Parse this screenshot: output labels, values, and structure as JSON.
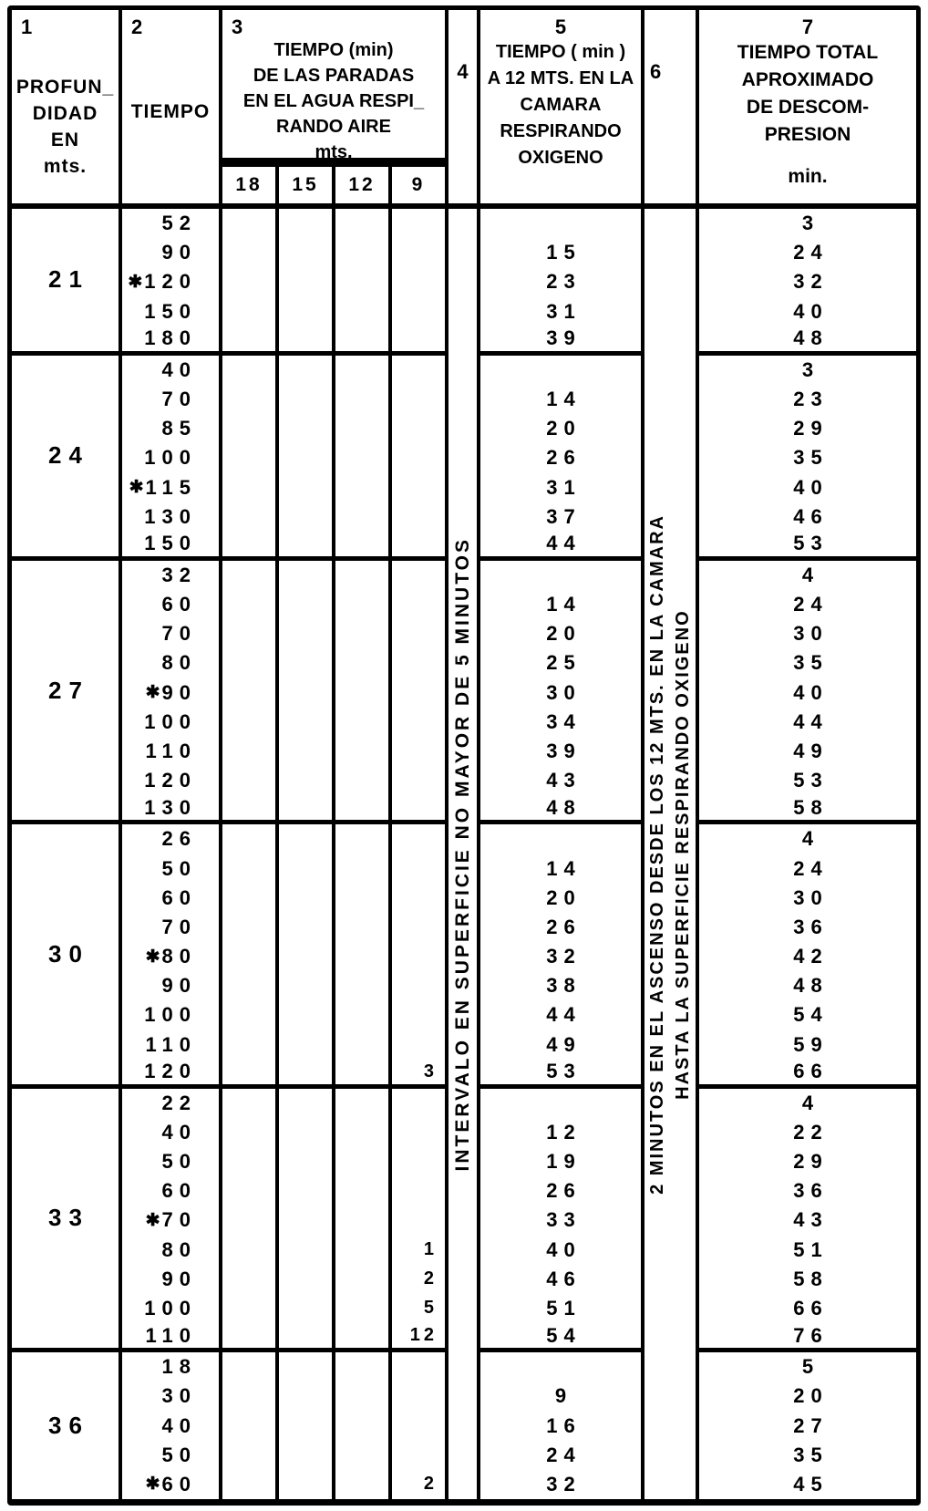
{
  "table": {
    "header": {
      "col1": {
        "num": "1",
        "lines": [
          "PROFUN_",
          "DIDAD",
          "EN",
          "mts."
        ]
      },
      "col2": {
        "num": "2",
        "label": "TIEMPO"
      },
      "col3": {
        "num": "3",
        "lines": [
          "TIEMPO (min)",
          "DE LAS PARADAS",
          "EN EL AGUA RESPI_",
          "RANDO AIRE",
          "mts."
        ],
        "sub": [
          "18",
          "15",
          "12",
          "9"
        ]
      },
      "col4": {
        "num": "4"
      },
      "col5": {
        "num": "5",
        "lines": [
          "TIEMPO ( min )",
          "A 12 MTS. EN LA",
          "CAMARA",
          "RESPIRANDO",
          "OXIGENO"
        ]
      },
      "col6": {
        "num": "6"
      },
      "col7": {
        "num": "7",
        "lines": [
          "TIEMPO TOTAL",
          "APROXIMADO",
          "DE DESCOM-",
          "PRESION",
          "min."
        ]
      }
    },
    "col4_vertical": "INTERVALO EN SUPERFICIE NO MAYOR DE 5 MINUTOS",
    "col6_vertical": [
      "2 MINUTOS EN EL ASCENSO DESDE LOS 12 MTS. EN LA CAMARA",
      "HASTA LA SUPERFICIE RESPIRANDO OXIGENO"
    ],
    "star_glyph": "✱",
    "ink_color": "#000000",
    "paper_color": "#ffffff",
    "groups": [
      {
        "depth": "21",
        "rows": [
          {
            "t": "52",
            "tot": "3"
          },
          {
            "t": "90",
            "o2": "15",
            "tot": "24"
          },
          {
            "t": "120",
            "star": true,
            "o2": "23",
            "tot": "32"
          },
          {
            "t": "150",
            "o2": "31",
            "tot": "40"
          },
          {
            "t": "180",
            "o2": "39",
            "tot": "48"
          }
        ]
      },
      {
        "depth": "24",
        "rows": [
          {
            "t": "40",
            "tot": "3"
          },
          {
            "t": "70",
            "o2": "14",
            "tot": "23"
          },
          {
            "t": "85",
            "o2": "20",
            "tot": "29"
          },
          {
            "t": "100",
            "o2": "26",
            "tot": "35"
          },
          {
            "t": "115",
            "star": true,
            "o2": "31",
            "tot": "40"
          },
          {
            "t": "130",
            "o2": "37",
            "tot": "46"
          },
          {
            "t": "150",
            "o2": "44",
            "tot": "53"
          }
        ]
      },
      {
        "depth": "27",
        "rows": [
          {
            "t": "32",
            "tot": "4"
          },
          {
            "t": "60",
            "o2": "14",
            "tot": "24"
          },
          {
            "t": "70",
            "o2": "20",
            "tot": "30"
          },
          {
            "t": "80",
            "o2": "25",
            "tot": "35"
          },
          {
            "t": "90",
            "star": true,
            "o2": "30",
            "tot": "40"
          },
          {
            "t": "100",
            "o2": "34",
            "tot": "44"
          },
          {
            "t": "110",
            "o2": "39",
            "tot": "49"
          },
          {
            "t": "120",
            "o2": "43",
            "tot": "53"
          },
          {
            "t": "130",
            "o2": "48",
            "tot": "58"
          }
        ]
      },
      {
        "depth": "30",
        "rows": [
          {
            "t": "26",
            "tot": "4"
          },
          {
            "t": "50",
            "o2": "14",
            "tot": "24"
          },
          {
            "t": "60",
            "o2": "20",
            "tot": "30"
          },
          {
            "t": "70",
            "o2": "26",
            "tot": "36"
          },
          {
            "t": "80",
            "star": true,
            "o2": "32",
            "tot": "42"
          },
          {
            "t": "90",
            "o2": "38",
            "tot": "48"
          },
          {
            "t": "100",
            "o2": "44",
            "tot": "54"
          },
          {
            "t": "110",
            "o2": "49",
            "tot": "59"
          },
          {
            "t": "120",
            "s9": "3",
            "o2": "53",
            "tot": "66"
          }
        ]
      },
      {
        "depth": "33",
        "rows": [
          {
            "t": "22",
            "tot": "4"
          },
          {
            "t": "40",
            "o2": "12",
            "tot": "22"
          },
          {
            "t": "50",
            "o2": "19",
            "tot": "29"
          },
          {
            "t": "60",
            "o2": "26",
            "tot": "36"
          },
          {
            "t": "70",
            "star": true,
            "o2": "33",
            "tot": "43"
          },
          {
            "t": "80",
            "s9": "1",
            "o2": "40",
            "tot": "51"
          },
          {
            "t": "90",
            "s9": "2",
            "o2": "46",
            "tot": "58"
          },
          {
            "t": "100",
            "s9": "5",
            "o2": "51",
            "tot": "66"
          },
          {
            "t": "110",
            "s9": "12",
            "o2": "54",
            "tot": "76"
          }
        ]
      },
      {
        "depth": "36",
        "rows": [
          {
            "t": "18",
            "tot": "5"
          },
          {
            "t": "30",
            "o2": "9",
            "tot": "20"
          },
          {
            "t": "40",
            "o2": "16",
            "tot": "27"
          },
          {
            "t": "50",
            "o2": "24",
            "tot": "35"
          },
          {
            "t": "60",
            "star": true,
            "s9": "2",
            "o2": "32",
            "tot": "45"
          }
        ]
      }
    ]
  }
}
